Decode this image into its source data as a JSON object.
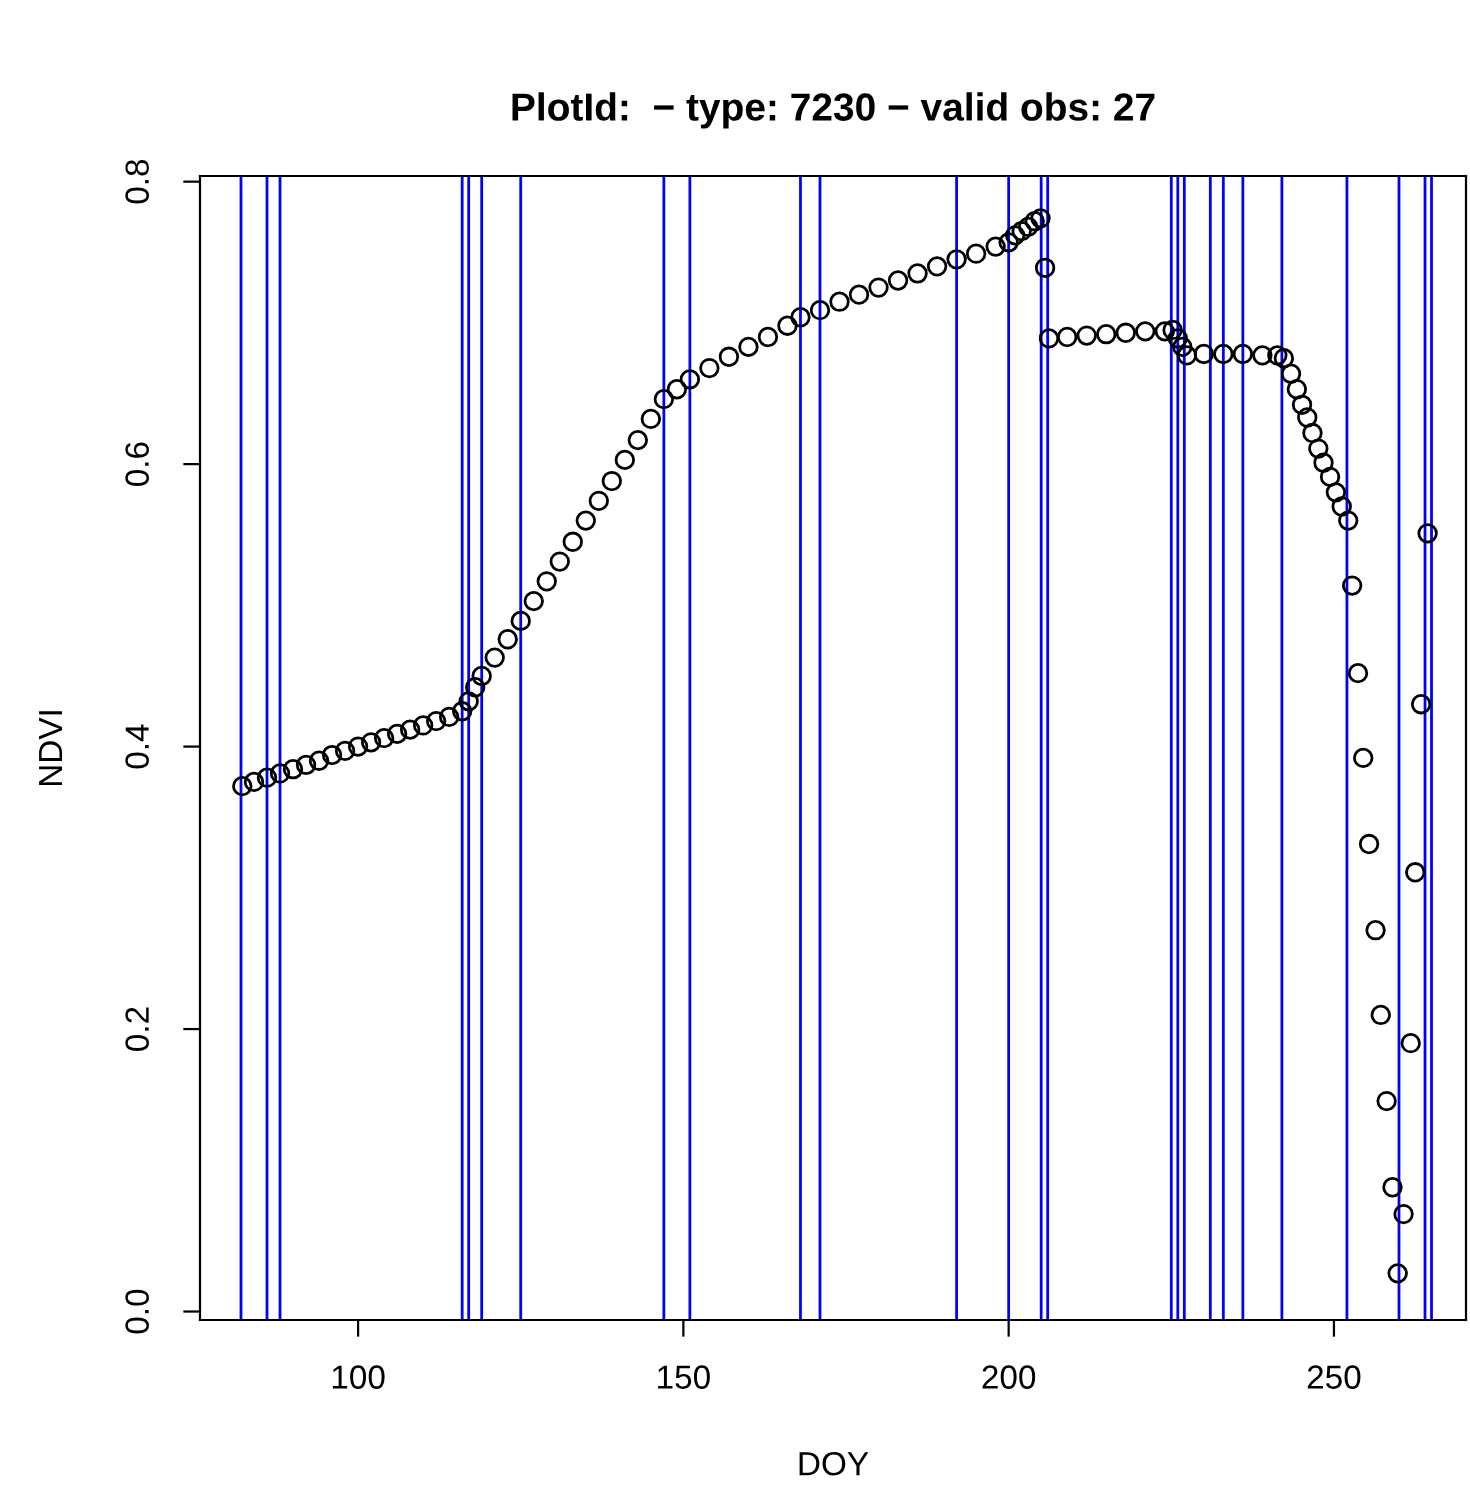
{
  "chart_data": {
    "type": "scatter",
    "title": "PlotId:  − type: 7230 − valid obs: 27",
    "xlabel": "DOY",
    "ylabel": "NDVI",
    "xlim": [
      75.7,
      270.3
    ],
    "ylim": [
      -0.006,
      0.804
    ],
    "xticks": [
      100,
      150,
      200,
      250
    ],
    "yticks": [
      {
        "value": 0,
        "label": "0.0"
      },
      {
        "value": 0.2,
        "label": "0.2"
      },
      {
        "value": 0.4,
        "label": "0.4"
      },
      {
        "value": 0.6,
        "label": "0.6"
      },
      {
        "value": 0.8,
        "label": "0.8"
      }
    ],
    "grid": false,
    "marker": "circle",
    "series": [
      {
        "color": "#000000",
        "x": [
          82.2,
          84,
          86,
          88,
          90,
          92,
          94,
          96,
          98,
          100,
          102,
          104,
          106,
          108,
          110,
          112,
          114,
          116,
          117,
          118,
          119,
          121,
          123,
          125,
          127,
          129,
          131,
          133,
          135,
          137,
          139,
          141,
          143,
          145,
          147,
          149,
          151,
          154,
          157,
          160,
          163,
          166,
          168,
          171,
          174,
          177,
          180,
          183,
          186,
          189,
          192,
          195,
          198,
          200,
          201,
          202,
          203,
          204,
          204.9,
          205.6,
          206.2,
          209,
          212,
          215,
          218,
          221,
          224,
          225.2,
          226,
          226.7,
          227.4,
          230,
          233,
          236,
          239,
          241.3,
          242.3,
          243.4,
          244.3,
          245.1,
          245.9,
          246.7,
          247.6,
          248.4,
          249.4,
          250.3,
          251.2,
          252.2,
          252.8,
          253.7,
          254.5,
          255.4,
          256.4,
          257.2,
          258.1,
          259.0,
          259.8,
          260.7,
          261.8,
          262.5,
          263.4,
          264.4
        ],
        "values": [
          0.372,
          0.375,
          0.378,
          0.381,
          0.384,
          0.387,
          0.39,
          0.394,
          0.397,
          0.4,
          0.403,
          0.406,
          0.409,
          0.412,
          0.415,
          0.418,
          0.421,
          0.425,
          0.432,
          0.442,
          0.45,
          0.463,
          0.476,
          0.489,
          0.503,
          0.517,
          0.531,
          0.545,
          0.56,
          0.574,
          0.588,
          0.603,
          0.617,
          0.632,
          0.646,
          0.653,
          0.66,
          0.668,
          0.676,
          0.683,
          0.69,
          0.698,
          0.704,
          0.709,
          0.715,
          0.72,
          0.725,
          0.73,
          0.735,
          0.74,
          0.745,
          0.749,
          0.754,
          0.757,
          0.762,
          0.765,
          0.768,
          0.772,
          0.774,
          0.739,
          0.689,
          0.69,
          0.691,
          0.692,
          0.693,
          0.694,
          0.694,
          0.695,
          0.689,
          0.683,
          0.677,
          0.678,
          0.678,
          0.678,
          0.677,
          0.677,
          0.675,
          0.664,
          0.653,
          0.642,
          0.633,
          0.622,
          0.611,
          0.601,
          0.591,
          0.58,
          0.57,
          0.56,
          0.514,
          0.452,
          0.392,
          0.331,
          0.27,
          0.21,
          0.149,
          0.088,
          0.027,
          0.069,
          0.19,
          0.311,
          0.43,
          0.551
        ]
      }
    ],
    "ref_lines": [
      {
        "axis": "x",
        "value": 82,
        "color": "#0000ff"
      },
      {
        "axis": "x",
        "value": 86,
        "color": "#0000ff"
      },
      {
        "axis": "x",
        "value": 88,
        "color": "#0000ff"
      },
      {
        "axis": "x",
        "value": 116,
        "color": "#0000ff"
      },
      {
        "axis": "x",
        "value": 117,
        "color": "#0000ff"
      },
      {
        "axis": "x",
        "value": 119,
        "color": "#0000ff"
      },
      {
        "axis": "x",
        "value": 125,
        "color": "#0000ff"
      },
      {
        "axis": "x",
        "value": 147,
        "color": "#0000ff"
      },
      {
        "axis": "x",
        "value": 151,
        "color": "#0000ff"
      },
      {
        "axis": "x",
        "value": 168,
        "color": "#0000ff"
      },
      {
        "axis": "x",
        "value": 171,
        "color": "#0000ff"
      },
      {
        "axis": "x",
        "value": 192,
        "color": "#0000ff"
      },
      {
        "axis": "x",
        "value": 200,
        "color": "#0000ff"
      },
      {
        "axis": "x",
        "value": 205,
        "color": "#0000ff"
      },
      {
        "axis": "x",
        "value": 206,
        "color": "#0000ff"
      },
      {
        "axis": "x",
        "value": 225,
        "color": "#0000ff"
      },
      {
        "axis": "x",
        "value": 226,
        "color": "#0000ff"
      },
      {
        "axis": "x",
        "value": 227,
        "color": "#0000ff"
      },
      {
        "axis": "x",
        "value": 231,
        "color": "#0000ff"
      },
      {
        "axis": "x",
        "value": 233,
        "color": "#0000ff"
      },
      {
        "axis": "x",
        "value": 236,
        "color": "#0000ff"
      },
      {
        "axis": "x",
        "value": 242,
        "color": "#0000ff"
      },
      {
        "axis": "x",
        "value": 252,
        "color": "#0000ff"
      },
      {
        "axis": "x",
        "value": 260,
        "color": "#0000ff"
      },
      {
        "axis": "x",
        "value": 264,
        "color": "#0000ff"
      },
      {
        "axis": "x",
        "value": 265,
        "color": "#0000ff"
      }
    ]
  }
}
